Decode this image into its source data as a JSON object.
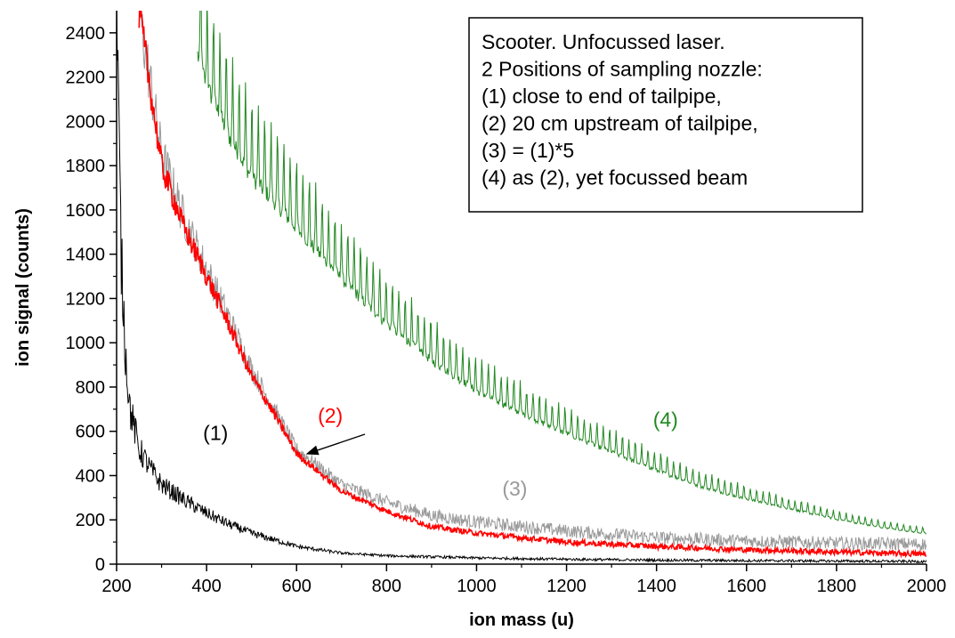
{
  "chart_data": {
    "type": "line",
    "xlabel": "ion mass (u)",
    "ylabel": "ion signal (counts)",
    "xlim": [
      200,
      2000
    ],
    "ylim": [
      0,
      2500
    ],
    "xticks": [
      200,
      400,
      600,
      800,
      1000,
      1200,
      1400,
      1600,
      1800,
      2000
    ],
    "yticks": [
      0,
      200,
      400,
      600,
      800,
      1000,
      1200,
      1400,
      1600,
      1800,
      2000,
      2200,
      2400
    ],
    "grid": false,
    "legend_box": {
      "position": "top-right",
      "lines": [
        "Scooter. Unfocussed laser.",
        "2 Positions of sampling nozzle:",
        "(1) close to end of tailpipe,",
        "(2) 20 cm upstream of tailpipe,",
        "(3) = (1)*5",
        "(4) as (2), yet focussed beam"
      ]
    },
    "series": [
      {
        "name": "(1)",
        "color": "#000000",
        "x": [
          200,
          210,
          220,
          230,
          250,
          275,
          300,
          350,
          400,
          450,
          500,
          600,
          700,
          800,
          1000,
          1200,
          1400,
          1600,
          1800,
          2000
        ],
        "values": [
          2500,
          1400,
          950,
          700,
          520,
          430,
          360,
          290,
          230,
          180,
          140,
          80,
          50,
          38,
          28,
          22,
          18,
          16,
          14,
          12
        ],
        "label_at": [
          420,
          560
        ]
      },
      {
        "name": "(2)",
        "color": "#ff0000",
        "x": [
          250,
          300,
          350,
          400,
          450,
          500,
          550,
          600,
          700,
          800,
          900,
          1000,
          1200,
          1400,
          1600,
          1800,
          2000
        ],
        "values": [
          2500,
          1800,
          1520,
          1300,
          1080,
          850,
          680,
          500,
          330,
          240,
          170,
          140,
          100,
          80,
          65,
          55,
          45
        ],
        "label_at": [
          675,
          640
        ]
      },
      {
        "name": "(3)",
        "color": "#999999",
        "x": [
          250,
          300,
          350,
          400,
          450,
          500,
          550,
          600,
          700,
          800,
          900,
          1000,
          1200,
          1400,
          1600,
          1800,
          2000
        ],
        "values": [
          2500,
          1850,
          1560,
          1330,
          1110,
          880,
          700,
          520,
          360,
          280,
          220,
          190,
          150,
          120,
          105,
          95,
          90
        ],
        "label_at": [
          1085,
          310
        ]
      },
      {
        "name": "(4)",
        "color": "#228822",
        "x": [
          380,
          400,
          450,
          500,
          550,
          600,
          700,
          800,
          900,
          1000,
          1100,
          1200,
          1300,
          1400,
          1500,
          1600,
          1700,
          1800,
          1900,
          2000
        ],
        "values": [
          2500,
          2350,
          2100,
          1900,
          1780,
          1650,
          1400,
          1180,
          1000,
          850,
          740,
          640,
          550,
          460,
          380,
          320,
          270,
          220,
          180,
          150
        ],
        "label_at": [
          1420,
          620
        ]
      }
    ]
  }
}
